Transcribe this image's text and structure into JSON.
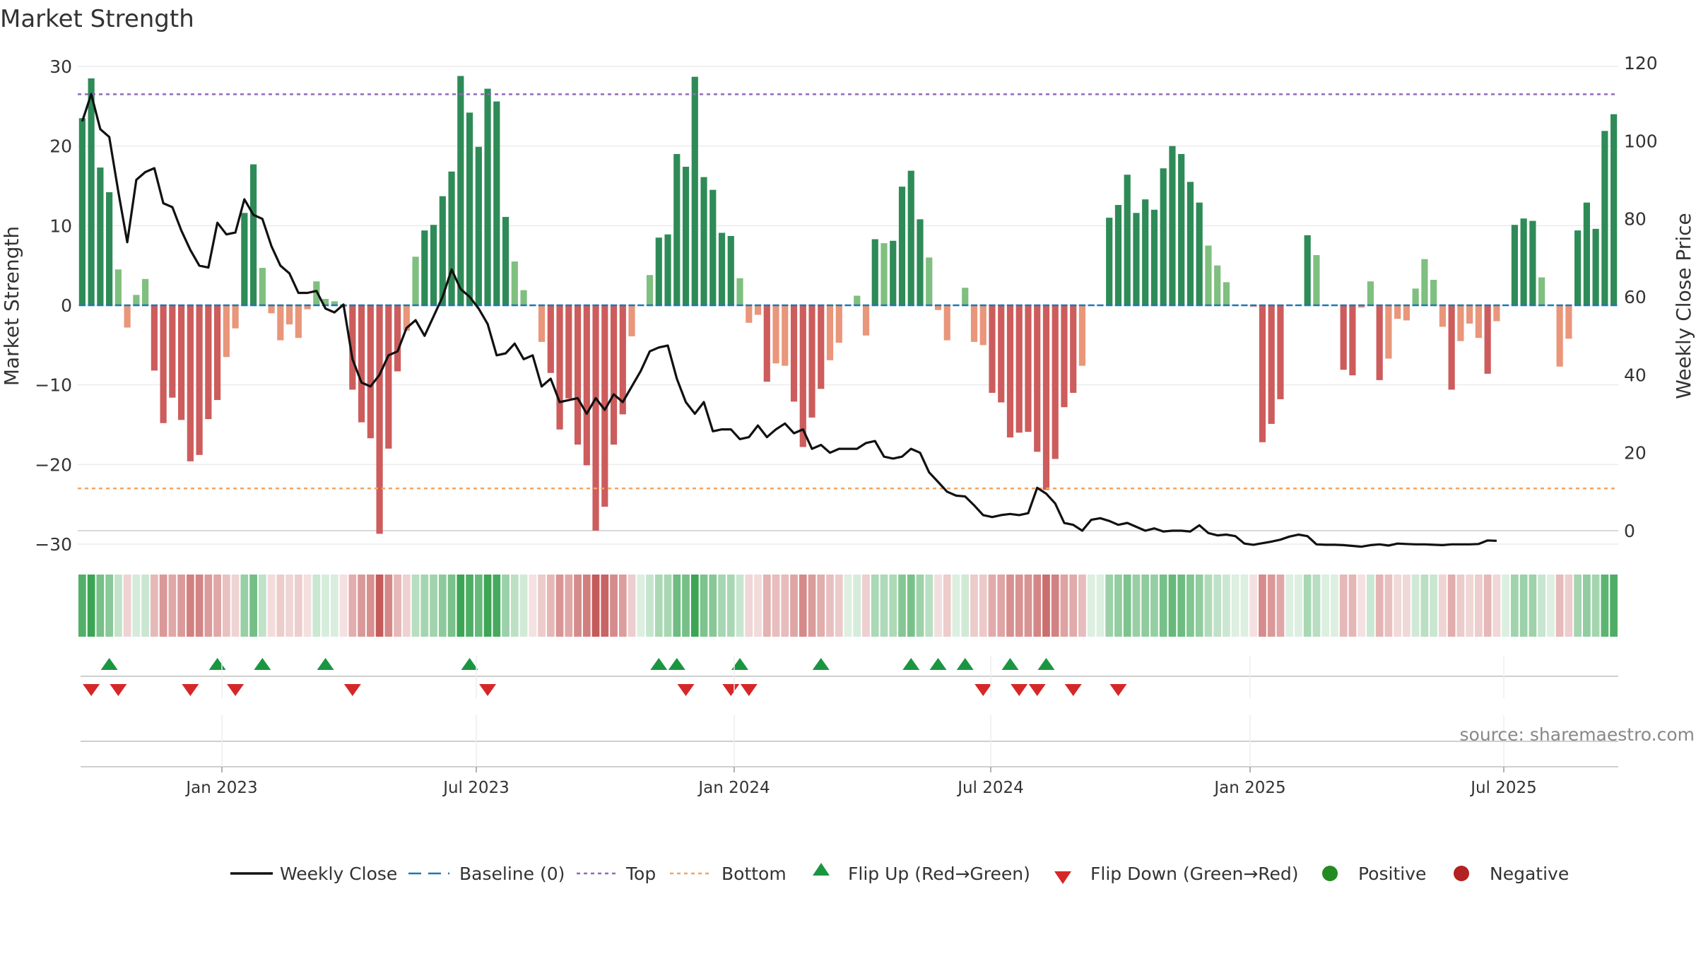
{
  "chart_data": {
    "type": "bar",
    "title": "Market Strength",
    "ylabel_left": "Market Strength",
    "ylabel_right": "Weekly Close Price",
    "ylim_left": [
      -30,
      30
    ],
    "ylim_right": [
      0,
      120
    ],
    "yticks_left": [
      "30",
      "20",
      "10",
      "0",
      "−10",
      "−20",
      "−30"
    ],
    "yticks_right": [
      "120",
      "100",
      "80",
      "60",
      "40",
      "20",
      "0"
    ],
    "xticks": [
      "Jan 2023",
      "Jul 2023",
      "Jan 2024",
      "Jul 2024",
      "Jan 2025",
      "Jul 2025"
    ],
    "top_level": 26.5,
    "bottom_level": -23,
    "source": "source: sharemaestro.com",
    "legend": [
      "Weekly Close",
      "Baseline (0)",
      "Top",
      "Bottom",
      "Flip Up (Red→Green)",
      "Flip Down (Green→Red)",
      "Positive",
      "Negative"
    ],
    "strength": [
      23.5,
      28.5,
      17.3,
      14.2,
      4.5,
      -2.8,
      1.3,
      3.3,
      -8.2,
      -14.8,
      -11.6,
      -14.4,
      -19.6,
      -18.8,
      -14.3,
      -11.9,
      -6.5,
      -2.9,
      11.6,
      17.7,
      4.7,
      -1,
      -4.4,
      -2.4,
      -4.1,
      -0.5,
      3,
      0.8,
      0.5,
      -0.2,
      -10.6,
      -14.7,
      -16.7,
      -28.7,
      -18,
      -8.3,
      -3.2,
      6.1,
      9.4,
      10.1,
      13.7,
      16.8,
      28.8,
      24.2,
      19.9,
      27.2,
      25.6,
      11.1,
      5.5,
      1.9,
      -0.1,
      -4.6,
      -8.5,
      -15.6,
      -11.7,
      -17.5,
      -20.1,
      -28.3,
      -25.3,
      -17.5,
      -13.7,
      -3.9,
      0,
      3.8,
      8.5,
      8.9,
      19,
      17.4,
      28.7,
      16.1,
      14.5,
      9.1,
      8.7,
      3.4,
      -2.2,
      -1.2,
      -9.6,
      -7.3,
      -7.6,
      -12.1,
      -17.8,
      -14.1,
      -10.5,
      -6.9,
      -4.7,
      0,
      1.2,
      -3.8,
      8.3,
      7.8,
      8.1,
      14.9,
      16.9,
      10.8,
      6,
      -0.6,
      -4.4,
      0,
      2.2,
      -4.6,
      -5,
      -11,
      -12.2,
      -16.6,
      -16,
      -15.9,
      -18.4,
      -23.2,
      -19.3,
      -12.8,
      -11,
      -7.6,
      0,
      0,
      11,
      12.6,
      16.4,
      11.6,
      13.3,
      12,
      17.2,
      20,
      19,
      15.5,
      12.9,
      7.5,
      5,
      2.9,
      0,
      0,
      -0.2,
      -17.2,
      -14.9,
      -11.8,
      0,
      0,
      8.8,
      6.3,
      0,
      0,
      -8.1,
      -8.8,
      -0.3,
      3,
      -9.4,
      -6.7,
      -1.7,
      -1.9,
      2.1,
      5.8,
      3.2,
      -2.7,
      -10.6,
      -4.5,
      -2.3,
      -4.1,
      -8.6,
      -2,
      0,
      10.1,
      10.9,
      10.6,
      3.5,
      0,
      -7.7,
      -4.2,
      9.4,
      12.9,
      9.6,
      21.9,
      24
    ],
    "close": [
      105,
      112,
      103,
      101,
      87,
      74,
      90,
      92,
      93,
      84,
      83,
      77,
      72,
      68,
      67.5,
      79,
      76,
      76.5,
      85,
      81,
      80,
      73,
      68,
      66,
      61,
      61,
      61.5,
      57,
      56,
      58,
      44,
      38,
      37,
      40,
      45,
      46,
      52,
      54,
      50,
      55,
      60,
      67,
      62,
      60,
      57,
      53,
      45,
      45.5,
      48,
      44,
      45,
      37,
      39,
      33,
      33.5,
      34,
      30,
      34,
      31,
      35,
      33,
      37,
      41,
      46,
      47,
      47.5,
      39,
      33,
      30,
      33,
      25.5,
      26,
      26,
      23.5,
      24,
      27,
      24,
      26,
      27.5,
      25,
      26,
      21,
      22,
      20,
      21,
      21,
      21,
      22.5,
      23,
      19,
      18.5,
      19,
      21,
      20,
      15,
      12.5,
      10,
      9,
      8.8,
      6.5,
      4,
      3.5,
      4,
      4.3,
      4,
      4.5,
      11,
      9.5,
      7,
      2,
      1.5,
      0,
      2.8,
      3.2,
      2.5,
      1.5,
      2,
      1,
      0,
      0.6,
      -0.2,
      0,
      0,
      -0.2,
      1.4,
      -0.6,
      -1.2,
      -1,
      -1.4,
      -3.3,
      -3.6,
      -3.2,
      -2.8,
      -2.3,
      -1.5,
      -1,
      -1.4,
      -3.5,
      -3.6,
      -3.6,
      -3.7,
      -3.9,
      -4.1,
      -3.7,
      -3.5,
      -3.8,
      -3.3,
      -3.4,
      -3.5,
      -3.5,
      -3.6,
      -3.7,
      -3.5,
      -3.5,
      -3.5,
      -3.4,
      -2.5,
      -2.6
    ],
    "flips_up": [
      3,
      15,
      20,
      27,
      43,
      64,
      66,
      73,
      82,
      92,
      95,
      98,
      103,
      107
    ],
    "flips_down": [
      1,
      4,
      12,
      17,
      30,
      45,
      67,
      72,
      74,
      100,
      104,
      106,
      110,
      115
    ]
  },
  "colors": {
    "strong_green": "#2e8b57",
    "light_green": "#7fbf7f",
    "strong_red": "#cd5c5c",
    "light_red": "#e9967a",
    "close_line": "#111111",
    "baseline": "#1f77b4",
    "top": "#9467bd",
    "bottom": "#f4a460",
    "flip_up": "#1a9641",
    "flip_down": "#d62728",
    "positive": "#228b22",
    "negative": "#b22222"
  }
}
